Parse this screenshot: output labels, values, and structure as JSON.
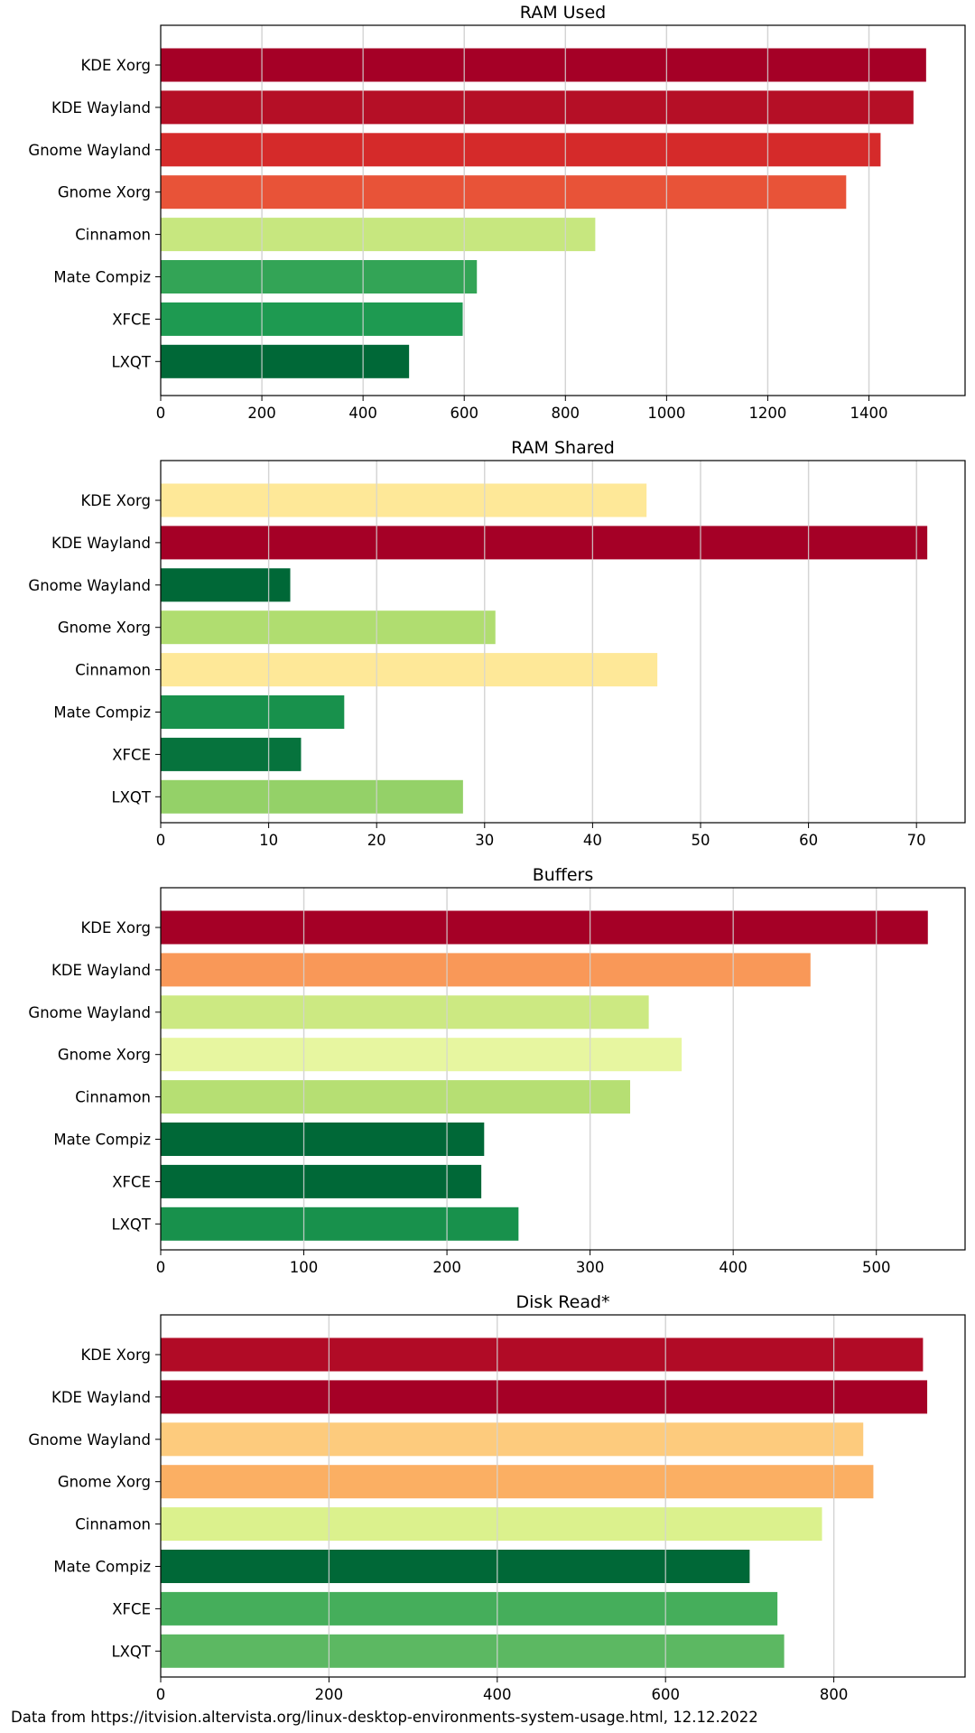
{
  "footnote": "Data from https://itvision.altervista.org/linux-desktop-environments-system-usage.html, 12.12.2022",
  "chart_data": [
    {
      "type": "bar",
      "orientation": "horizontal",
      "title": "RAM Used",
      "xlabel": "",
      "ylabel": "",
      "categories": [
        "KDE Xorg",
        "KDE Wayland",
        "Gnome Wayland",
        "Gnome Xorg",
        "Cinnamon",
        "Mate Compiz",
        "XFCE",
        "LXQT"
      ],
      "values": [
        1513,
        1488,
        1423,
        1355,
        859,
        625,
        597,
        491
      ],
      "colors": [
        "#a50026",
        "#b50f26",
        "#d52a2a",
        "#e85338",
        "#c7e77f",
        "#33a456",
        "#1e9a51",
        "#006837"
      ],
      "xlim": [
        0,
        1590
      ],
      "xticks": [
        0,
        200,
        400,
        600,
        800,
        1000,
        1200,
        1400
      ],
      "grid": "vertical"
    },
    {
      "type": "bar",
      "orientation": "horizontal",
      "title": "RAM Shared",
      "xlabel": "",
      "ylabel": "",
      "categories": [
        "KDE Xorg",
        "KDE Wayland",
        "Gnome Wayland",
        "Gnome Xorg",
        "Cinnamon",
        "Mate Compiz",
        "XFCE",
        "LXQT"
      ],
      "values": [
        45,
        71,
        12,
        31,
        46,
        17,
        13,
        28
      ],
      "colors": [
        "#fee898",
        "#a50026",
        "#006837",
        "#b0dd70",
        "#fee898",
        "#18914c",
        "#06733d",
        "#94d168"
      ],
      "xlim": [
        0,
        74.5
      ],
      "xticks": [
        0,
        10,
        20,
        30,
        40,
        50,
        60,
        70
      ],
      "grid": "vertical"
    },
    {
      "type": "bar",
      "orientation": "horizontal",
      "title": "Buffers",
      "xlabel": "",
      "ylabel": "",
      "categories": [
        "KDE Xorg",
        "KDE Wayland",
        "Gnome Wayland",
        "Gnome Xorg",
        "Cinnamon",
        "Mate Compiz",
        "XFCE",
        "LXQT"
      ],
      "values": [
        536,
        454,
        341,
        364,
        328,
        226,
        224,
        250
      ],
      "colors": [
        "#a50026",
        "#f99858",
        "#cce982",
        "#e7f6a0",
        "#b6df73",
        "#006837",
        "#006837",
        "#18914c"
      ],
      "xlim": [
        0,
        562
      ],
      "xticks": [
        0,
        100,
        200,
        300,
        400,
        500
      ],
      "grid": "vertical"
    },
    {
      "type": "bar",
      "orientation": "horizontal",
      "title": "Disk Read*",
      "xlabel": "",
      "ylabel": "",
      "categories": [
        "KDE Xorg",
        "KDE Wayland",
        "Gnome Wayland",
        "Gnome Xorg",
        "Cinnamon",
        "Mate Compiz",
        "XFCE",
        "LXQT"
      ],
      "values": [
        906,
        911,
        835,
        847,
        786,
        700,
        733,
        741
      ],
      "colors": [
        "#b10b26",
        "#a50026",
        "#fdcb7d",
        "#fbaf63",
        "#dbf18d",
        "#006837",
        "#45ae5b",
        "#5cb862"
      ],
      "xlim": [
        0,
        956
      ],
      "xticks": [
        0,
        200,
        400,
        600,
        800
      ],
      "grid": "vertical"
    }
  ]
}
